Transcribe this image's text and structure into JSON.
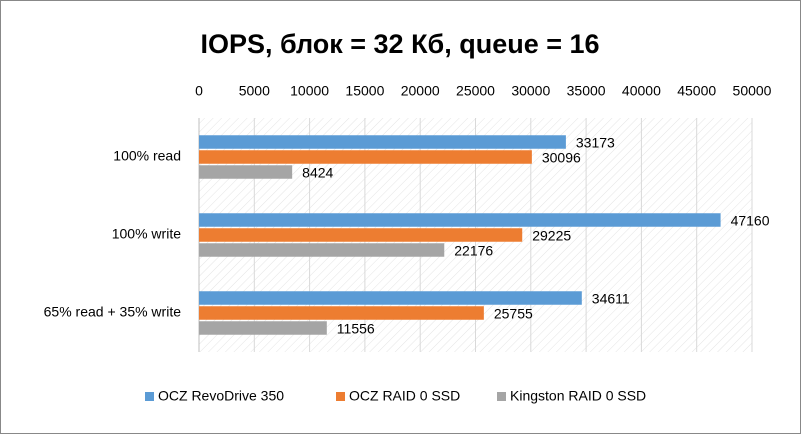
{
  "chart_data": {
    "type": "bar",
    "orientation": "horizontal",
    "title": "IOPS, блок = 32 Кб, queue = 16",
    "categories": [
      "100% read",
      "100% write",
      "65% read + 35% write"
    ],
    "series": [
      {
        "name": "OCZ RevoDrive 350",
        "color": "#5b9bd5",
        "values": [
          33173,
          47160,
          34611
        ]
      },
      {
        "name": "OCZ RAID 0 SSD",
        "color": "#ed7d31",
        "values": [
          30096,
          29225,
          25755
        ]
      },
      {
        "name": "Kingston RAID 0 SSD",
        "color": "#a5a5a5",
        "values": [
          8424,
          22176,
          11556
        ]
      }
    ],
    "xlim": [
      0,
      50000
    ],
    "xticks": [
      0,
      5000,
      10000,
      15000,
      20000,
      25000,
      30000,
      35000,
      40000,
      45000,
      50000
    ],
    "grid": true,
    "legend": "bottom"
  }
}
